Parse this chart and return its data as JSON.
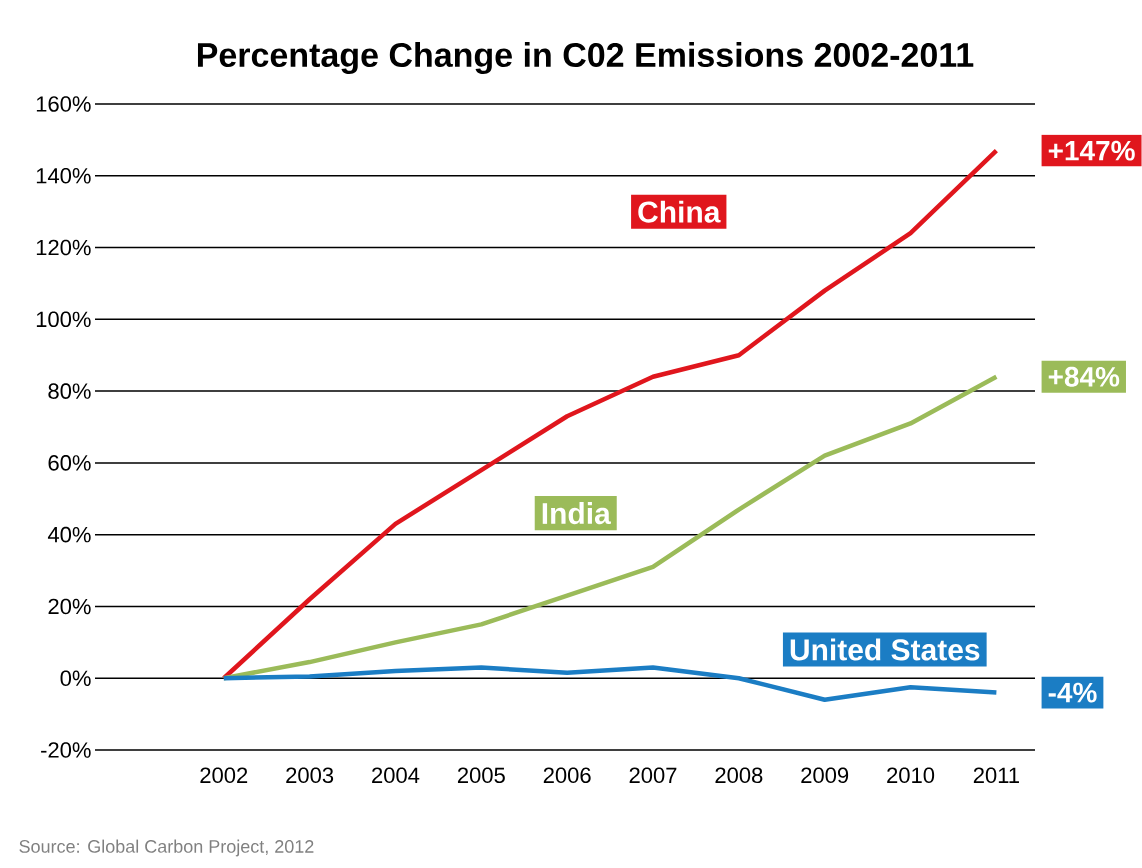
{
  "chart_data": {
    "type": "line",
    "title": "Percentage Change in C02 Emissions 2002-2011",
    "x": [
      2002,
      2003,
      2004,
      2005,
      2006,
      2007,
      2008,
      2009,
      2010,
      2011
    ],
    "series": [
      {
        "name": "China",
        "color": "#e0161d",
        "values": [
          0,
          22,
          43,
          58,
          73,
          84,
          90,
          108,
          124,
          147
        ],
        "value_labels": [
          null,
          null,
          null,
          null,
          null,
          null,
          null,
          null,
          null,
          "+147%"
        ]
      },
      {
        "name": "India",
        "color": "#9bbb59",
        "values": [
          0,
          4.5,
          10,
          15,
          23,
          31,
          47,
          62,
          71,
          84
        ],
        "value_labels": [
          null,
          null,
          null,
          null,
          null,
          null,
          null,
          null,
          null,
          "+84%"
        ]
      },
      {
        "name": "United States",
        "color": "#1b7dc4",
        "values": [
          0,
          0.5,
          2,
          3,
          1.5,
          3,
          0,
          -6,
          -2.5,
          -4
        ],
        "value_labels": [
          null,
          null,
          null,
          null,
          null,
          null,
          null,
          null,
          null,
          "-4%"
        ]
      }
    ],
    "xlim": [
      2000.5,
      2011.45
    ],
    "ylim": [
      -20,
      160
    ],
    "xticks": [
      2002,
      2003,
      2004,
      2005,
      2006,
      2007,
      2008,
      2009,
      2010,
      2011
    ],
    "yticks": [
      {
        "value": -20,
        "label": "-20%"
      },
      {
        "value": 0,
        "label": "0%"
      },
      {
        "value": 20,
        "label": "20%"
      },
      {
        "value": 40,
        "label": "40%"
      },
      {
        "value": 60,
        "label": "60%"
      },
      {
        "value": 80,
        "label": "80%"
      },
      {
        "value": 100,
        "label": "100%"
      },
      {
        "value": 120,
        "label": "120%"
      },
      {
        "value": 140,
        "label": "140%"
      },
      {
        "value": 160,
        "label": "160%"
      }
    ],
    "grid": "y",
    "legend": false,
    "marker": "none",
    "line_style": "solid",
    "annotations": [
      "Source: Global Carbon Project, 2012"
    ]
  }
}
